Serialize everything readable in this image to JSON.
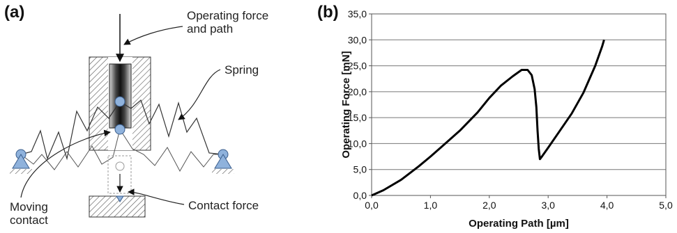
{
  "panel_a": {
    "label": "(a)",
    "annotations": {
      "operating_force_line1": "Operating force",
      "operating_force_line2": "and path",
      "spring": "Spring",
      "moving_contact_line1": "Moving",
      "moving_contact_line2": "contact",
      "contact_force": "Contact force"
    },
    "colors": {
      "ball": "#8fb2dc",
      "support": "#8fb2dc",
      "hatch": "#555555"
    }
  },
  "panel_b": {
    "label": "(b)",
    "chart_data": {
      "type": "line",
      "xlabel": "Operating Path [µm]",
      "ylabel": "Operating Force [mN]",
      "xlim": [
        0,
        5
      ],
      "ylim": [
        0,
        35
      ],
      "x_ticks": [
        "0,0",
        "1,0",
        "2,0",
        "3,0",
        "4,0",
        "5,0"
      ],
      "y_ticks": [
        "0,0",
        "5,0",
        "10,0",
        "15,0",
        "20,0",
        "25,0",
        "30,0",
        "35,0"
      ],
      "grid": "horizontal",
      "series": [
        {
          "color": "#000000",
          "points": [
            [
              0.0,
              0.0
            ],
            [
              0.2,
              1.0
            ],
            [
              0.5,
              3.0
            ],
            [
              0.8,
              5.6
            ],
            [
              1.0,
              7.5
            ],
            [
              1.2,
              9.5
            ],
            [
              1.5,
              12.5
            ],
            [
              1.8,
              16.0
            ],
            [
              2.0,
              18.8
            ],
            [
              2.2,
              21.2
            ],
            [
              2.4,
              23.0
            ],
            [
              2.55,
              24.2
            ],
            [
              2.65,
              24.2
            ],
            [
              2.72,
              23.2
            ],
            [
              2.77,
              20.5
            ],
            [
              2.8,
              17.0
            ],
            [
              2.82,
              12.5
            ],
            [
              2.84,
              9.0
            ],
            [
              2.86,
              7.0
            ],
            [
              2.9,
              7.6
            ],
            [
              3.0,
              9.2
            ],
            [
              3.2,
              12.5
            ],
            [
              3.4,
              15.8
            ],
            [
              3.6,
              19.8
            ],
            [
              3.8,
              25.0
            ],
            [
              3.92,
              28.8
            ],
            [
              3.95,
              30.0
            ]
          ]
        }
      ]
    }
  }
}
